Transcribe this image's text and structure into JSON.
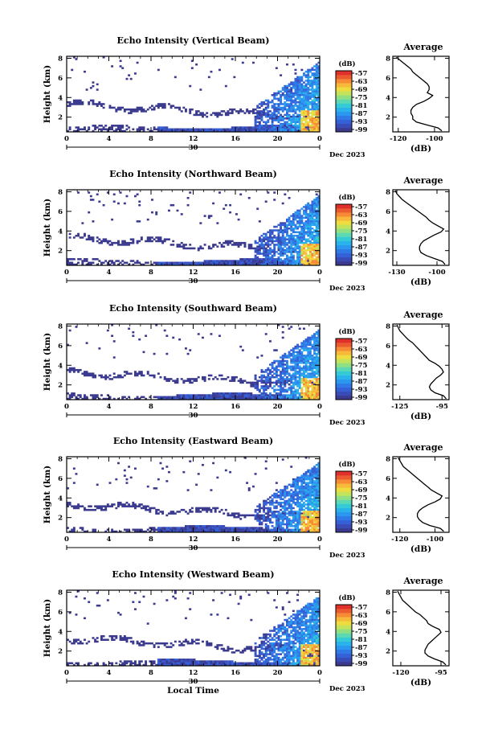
{
  "colors": {
    "cmap": [
      "#3b3a8f",
      "#3b4bb5",
      "#3560d6",
      "#2f7ae6",
      "#2b97ef",
      "#2ab3ea",
      "#35cbd6",
      "#5cd9b3",
      "#8fe085",
      "#c2e35b",
      "#efdc3f",
      "#f8b93a",
      "#f68a35",
      "#ec5a2f",
      "#e0302c"
    ],
    "frame": "#000000"
  },
  "chart_data": [
    {
      "type": "heatmap",
      "title": "Echo Intensity (Vertical Beam)",
      "ylabel": "Height (km)",
      "xlabel": "",
      "x_ticks": [
        "0",
        "4",
        "8",
        "12",
        "16",
        "20",
        "0"
      ],
      "xlim": [
        0,
        24
      ],
      "y_ticks": [
        "2",
        "4",
        "6",
        "8"
      ],
      "ylim": [
        0.5,
        8.2
      ],
      "date_label": "30",
      "month_label": "Dec 2023",
      "colorbar": {
        "unit": "(dB)",
        "ticks": [
          "-57",
          "-63",
          "-69",
          "-75",
          "-81",
          "-87",
          "-93",
          "-99"
        ]
      },
      "average": {
        "title": "Average",
        "xlabel": "(dB)",
        "x_ticks": [
          "-120",
          "-100"
        ],
        "xlim": [
          -123,
          -92
        ],
        "y_ticks": [
          "2",
          "4",
          "6",
          "8"
        ],
        "height": [
          0.6,
          0.9,
          1.2,
          1.5,
          1.8,
          2.1,
          2.4,
          2.7,
          3.0,
          3.3,
          3.6,
          3.9,
          4.2,
          4.5,
          4.8,
          5.1,
          5.4,
          5.7,
          6.0,
          6.3,
          6.6,
          6.9,
          7.2,
          7.5,
          7.8,
          8.1
        ],
        "value": [
          -96,
          -98,
          -104,
          -110,
          -112,
          -112,
          -113,
          -113,
          -112,
          -110,
          -106,
          -103,
          -101,
          -104,
          -103,
          -103,
          -104,
          -106,
          -108,
          -110,
          -112,
          -113,
          -115,
          -117,
          -119,
          -121
        ]
      }
    },
    {
      "type": "heatmap",
      "title": "Echo Intensity (Northward Beam)",
      "ylabel": "Height (km)",
      "xlabel": "",
      "x_ticks": [
        "0",
        "4",
        "8",
        "12",
        "16",
        "20",
        "0"
      ],
      "xlim": [
        0,
        24
      ],
      "y_ticks": [
        "2",
        "4",
        "6",
        "8"
      ],
      "ylim": [
        0.5,
        8.2
      ],
      "date_label": "30",
      "month_label": "Dec 2023",
      "colorbar": {
        "unit": "(dB)",
        "ticks": [
          "-57",
          "-63",
          "-69",
          "-75",
          "-81",
          "-87",
          "-93",
          "-99"
        ]
      },
      "average": {
        "title": "Average",
        "xlabel": "(dB)",
        "x_ticks": [
          "-130",
          "-100"
        ],
        "xlim": [
          -133,
          -91
        ],
        "y_ticks": [
          "2",
          "4",
          "6",
          "8"
        ],
        "height": [
          0.6,
          0.9,
          1.2,
          1.5,
          1.8,
          2.1,
          2.4,
          2.7,
          3.0,
          3.3,
          3.6,
          3.9,
          4.2,
          4.5,
          4.8,
          5.1,
          5.4,
          5.7,
          6.0,
          6.3,
          6.6,
          6.9,
          7.2,
          7.5,
          7.8,
          8.1
        ],
        "value": [
          -94,
          -96,
          -102,
          -108,
          -112,
          -113,
          -113,
          -112,
          -110,
          -106,
          -102,
          -97,
          -95,
          -99,
          -103,
          -106,
          -108,
          -111,
          -114,
          -117,
          -120,
          -123,
          -126,
          -128,
          -130,
          -131
        ]
      }
    },
    {
      "type": "heatmap",
      "title": "Echo Intensity (Southward Beam)",
      "ylabel": "Height (km)",
      "xlabel": "",
      "x_ticks": [
        "0",
        "4",
        "8",
        "12",
        "16",
        "20",
        "0"
      ],
      "xlim": [
        0,
        24
      ],
      "y_ticks": [
        "2",
        "4",
        "6",
        "8"
      ],
      "ylim": [
        0.5,
        8.2
      ],
      "date_label": "30",
      "month_label": "Dec 2023",
      "colorbar": {
        "unit": "(dB)",
        "ticks": [
          "-57",
          "-63",
          "-69",
          "-75",
          "-81",
          "-87",
          "-93",
          "-99"
        ]
      },
      "average": {
        "title": "Average",
        "xlabel": "(dB)",
        "x_ticks": [
          "-125",
          "-95"
        ],
        "xlim": [
          -130,
          -90
        ],
        "y_ticks": [
          "2",
          "4",
          "6",
          "8"
        ],
        "height": [
          0.6,
          0.9,
          1.2,
          1.5,
          1.8,
          2.1,
          2.4,
          2.7,
          3.0,
          3.3,
          3.6,
          3.9,
          4.2,
          4.5,
          4.8,
          5.1,
          5.4,
          5.7,
          6.0,
          6.3,
          6.6,
          6.9,
          7.2,
          7.5,
          7.8,
          8.1
        ],
        "value": [
          -92,
          -94,
          -100,
          -103,
          -104,
          -103,
          -101,
          -99,
          -96,
          -94,
          -95,
          -97,
          -100,
          -104,
          -106,
          -108,
          -110,
          -112,
          -114,
          -116,
          -119,
          -121,
          -123,
          -125,
          -126,
          -127
        ]
      }
    },
    {
      "type": "heatmap",
      "title": "Echo Intensity (Eastward Beam)",
      "ylabel": "Height (km)",
      "xlabel": "",
      "x_ticks": [
        "0",
        "4",
        "8",
        "12",
        "16",
        "20",
        "0"
      ],
      "xlim": [
        0,
        24
      ],
      "y_ticks": [
        "2",
        "4",
        "6",
        "8"
      ],
      "ylim": [
        0.5,
        8.2
      ],
      "date_label": "30",
      "month_label": "Dec 2023",
      "colorbar": {
        "unit": "(dB)",
        "ticks": [
          "-57",
          "-63",
          "-69",
          "-75",
          "-81",
          "-87",
          "-93",
          "-99"
        ]
      },
      "average": {
        "title": "Average",
        "xlabel": "(dB)",
        "x_ticks": [
          "-120",
          "-100"
        ],
        "xlim": [
          -124,
          -92
        ],
        "y_ticks": [
          "2",
          "4",
          "6",
          "8"
        ],
        "height": [
          0.6,
          0.9,
          1.2,
          1.5,
          1.8,
          2.1,
          2.4,
          2.7,
          3.0,
          3.3,
          3.6,
          3.9,
          4.2,
          4.5,
          4.8,
          5.1,
          5.4,
          5.7,
          6.0,
          6.3,
          6.6,
          6.9,
          7.2,
          7.5,
          7.8,
          8.1
        ],
        "value": [
          -95,
          -97,
          -103,
          -107,
          -109,
          -110,
          -110,
          -109,
          -107,
          -104,
          -100,
          -97,
          -96,
          -99,
          -102,
          -104,
          -106,
          -108,
          -110,
          -112,
          -114,
          -116,
          -118,
          -119,
          -120,
          -121
        ]
      }
    },
    {
      "type": "heatmap",
      "title": "Echo Intensity (Westward Beam)",
      "ylabel": "Height (km)",
      "xlabel": "Local Time",
      "x_ticks": [
        "0",
        "4",
        "8",
        "12",
        "16",
        "20",
        "0"
      ],
      "xlim": [
        0,
        24
      ],
      "y_ticks": [
        "2",
        "4",
        "6",
        "8"
      ],
      "ylim": [
        0.5,
        8.2
      ],
      "date_label": "30",
      "month_label": "Dec 2023",
      "colorbar": {
        "unit": "(dB)",
        "ticks": [
          "-57",
          "-63",
          "-69",
          "-75",
          "-81",
          "-87",
          "-93",
          "-99"
        ]
      },
      "average": {
        "title": "Average",
        "xlabel": "(dB)",
        "x_ticks": [
          "-120",
          "-95"
        ],
        "xlim": [
          -125,
          -90
        ],
        "y_ticks": [
          "2",
          "4",
          "6",
          "8"
        ],
        "height": [
          0.6,
          0.9,
          1.2,
          1.5,
          1.8,
          2.1,
          2.4,
          2.7,
          3.0,
          3.3,
          3.6,
          3.9,
          4.2,
          4.5,
          4.8,
          5.1,
          5.4,
          5.7,
          6.0,
          6.3,
          6.6,
          6.9,
          7.2,
          7.5,
          7.8,
          8.1
        ],
        "value": [
          -92,
          -94,
          -99,
          -103,
          -105,
          -105,
          -104,
          -103,
          -101,
          -99,
          -97,
          -95,
          -96,
          -100,
          -103,
          -104,
          -106,
          -108,
          -111,
          -113,
          -115,
          -117,
          -119,
          -120,
          -121,
          -122
        ]
      }
    }
  ]
}
